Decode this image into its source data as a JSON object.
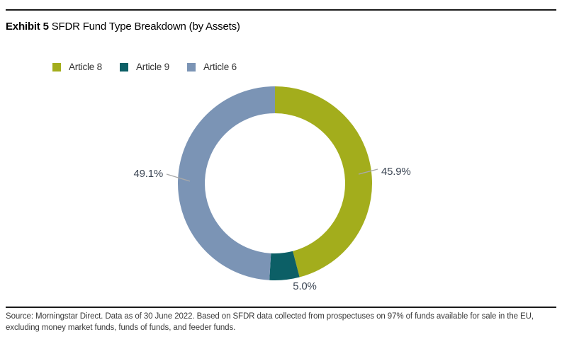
{
  "header": {
    "title_prefix": "Exhibit 5",
    "title_text": "SFDR Fund Type Breakdown (by Assets)"
  },
  "legend": {
    "items": [
      {
        "label": "Article 8",
        "color": "#a3ad1c"
      },
      {
        "label": "Article 9",
        "color": "#0c5f66"
      },
      {
        "label": "Article 6",
        "color": "#7b94b5"
      }
    ]
  },
  "chart_data": {
    "type": "pie",
    "subtype": "donut",
    "title": "SFDR Fund Type Breakdown (by Assets)",
    "categories": [
      "Article 8",
      "Article 9",
      "Article 6"
    ],
    "values": [
      45.9,
      5.0,
      49.1
    ],
    "value_labels": [
      "45.9%",
      "5.0%",
      "49.1%"
    ],
    "colors": [
      "#a3ad1c",
      "#0c5f66",
      "#7b94b5"
    ],
    "unit": "%",
    "start_angle_deg": 0,
    "direction": "clockwise",
    "inner_radius_ratio": 0.72,
    "legend_position": "top-left",
    "leader_line_color": "#a9a9a9"
  },
  "footer": {
    "source_lines": [
      "Source: Morningstar Direct. Data as of 30 June 2022. Based on SFDR data collected from prospectuses on 97% of funds available for sale in the EU,",
      "excluding money market funds, funds of funds, and feeder funds."
    ]
  }
}
